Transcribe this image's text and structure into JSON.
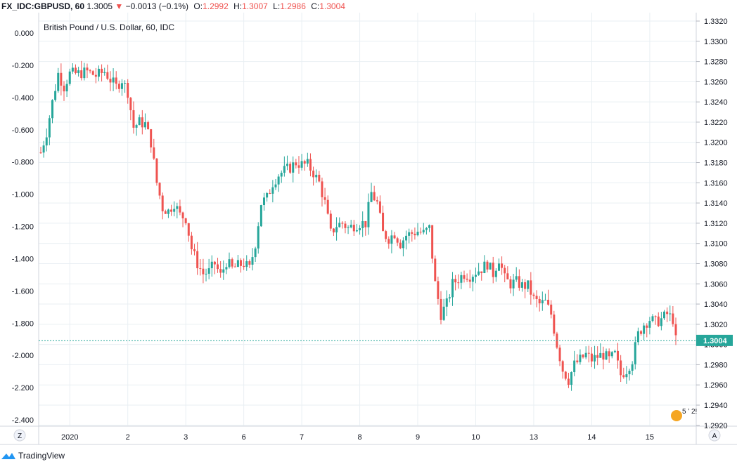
{
  "header": {
    "symbol": "FX_IDC:GBPUSD, 60",
    "last": "1.3005",
    "change_arrow": "▼",
    "change": "−0.0013 (−0.1%)",
    "o_label": "O:",
    "o_value": "1.2992",
    "h_label": "H:",
    "h_value": "1.3007",
    "l_label": "L:",
    "l_value": "1.2986",
    "c_label": "C:",
    "c_value": "1.3004"
  },
  "chart_data": {
    "type": "candlestick",
    "title": "British Pound / U.S. Dollar, 60, IDC",
    "right_axis_ticks": [
      "1.3320",
      "1.3300",
      "1.3280",
      "1.3260",
      "1.3240",
      "1.3220",
      "1.3200",
      "1.3180",
      "1.3160",
      "1.3140",
      "1.3120",
      "1.3100",
      "1.3080",
      "1.3060",
      "1.3040",
      "1.3020",
      "1.3000",
      "1.2980",
      "1.2960",
      "1.2940",
      "1.2920"
    ],
    "right_axis_values": [
      1.332,
      1.33,
      1.328,
      1.326,
      1.324,
      1.322,
      1.32,
      1.318,
      1.316,
      1.314,
      1.312,
      1.31,
      1.308,
      1.306,
      1.304,
      1.302,
      1.3,
      1.298,
      1.296,
      1.294,
      1.292
    ],
    "left_axis_ticks": [
      "0.000",
      "-0.200",
      "-0.400",
      "-0.600",
      "-0.800",
      "-1.000",
      "-1.200",
      "-1.400",
      "-1.600",
      "-1.800",
      "-2.000",
      "-2.200",
      "-2.400"
    ],
    "left_axis_values": [
      0,
      -0.2,
      -0.4,
      -0.6,
      -0.8,
      -1.0,
      -1.2,
      -1.4,
      -1.6,
      -1.8,
      -2.0,
      -2.2,
      -2.4
    ],
    "x_tick_labels": [
      "2020",
      "2",
      "3",
      "6",
      "7",
      "8",
      "9",
      "10",
      "13",
      "14",
      "15"
    ],
    "x_tick_index": [
      10,
      30,
      50,
      70,
      90,
      110,
      130,
      150,
      170,
      190,
      210
    ],
    "current_price": "1.3004",
    "current_price_value": 1.3004,
    "ylim": [
      1.2918,
      1.3324
    ],
    "up_color": "#26a69a",
    "down_color": "#ef5350",
    "bars": 220,
    "anchors": [
      [
        0,
        1.319
      ],
      [
        2,
        1.321
      ],
      [
        4,
        1.324
      ],
      [
        6,
        1.3268
      ],
      [
        8,
        1.3255
      ],
      [
        10,
        1.3268
      ],
      [
        13,
        1.3268
      ],
      [
        16,
        1.327
      ],
      [
        19,
        1.3266
      ],
      [
        22,
        1.327
      ],
      [
        24,
        1.3262
      ],
      [
        26,
        1.3255
      ],
      [
        28,
        1.3262
      ],
      [
        30,
        1.325
      ],
      [
        32,
        1.3215
      ],
      [
        34,
        1.322
      ],
      [
        36,
        1.3218
      ],
      [
        38,
        1.32
      ],
      [
        40,
        1.316
      ],
      [
        42,
        1.3135
      ],
      [
        44,
        1.3132
      ],
      [
        46,
        1.314
      ],
      [
        48,
        1.3128
      ],
      [
        50,
        1.3125
      ],
      [
        52,
        1.3095
      ],
      [
        54,
        1.308
      ],
      [
        56,
        1.307
      ],
      [
        58,
        1.3072
      ],
      [
        60,
        1.308
      ],
      [
        62,
        1.3068
      ],
      [
        64,
        1.3082
      ],
      [
        66,
        1.3075
      ],
      [
        68,
        1.3078
      ],
      [
        70,
        1.308
      ],
      [
        72,
        1.3075
      ],
      [
        74,
        1.31
      ],
      [
        76,
        1.314
      ],
      [
        78,
        1.3145
      ],
      [
        80,
        1.316
      ],
      [
        82,
        1.3168
      ],
      [
        84,
        1.3172
      ],
      [
        86,
        1.3175
      ],
      [
        88,
        1.318
      ],
      [
        90,
        1.3178
      ],
      [
        92,
        1.3178
      ],
      [
        94,
        1.317
      ],
      [
        96,
        1.316
      ],
      [
        98,
        1.314
      ],
      [
        100,
        1.311
      ],
      [
        102,
        1.3118
      ],
      [
        104,
        1.312
      ],
      [
        106,
        1.3115
      ],
      [
        108,
        1.3118
      ],
      [
        110,
        1.312
      ],
      [
        112,
        1.312
      ],
      [
        114,
        1.315
      ],
      [
        116,
        1.314
      ],
      [
        118,
        1.311
      ],
      [
        120,
        1.3105
      ],
      [
        122,
        1.311
      ],
      [
        124,
        1.31
      ],
      [
        126,
        1.3108
      ],
      [
        128,
        1.311
      ],
      [
        130,
        1.3112
      ],
      [
        132,
        1.311
      ],
      [
        134,
        1.3115
      ],
      [
        136,
        1.306
      ],
      [
        138,
        1.303
      ],
      [
        140,
        1.304
      ],
      [
        142,
        1.306
      ],
      [
        144,
        1.3065
      ],
      [
        146,
        1.307
      ],
      [
        148,
        1.3068
      ],
      [
        150,
        1.3072
      ],
      [
        152,
        1.3075
      ],
      [
        154,
        1.308
      ],
      [
        156,
        1.307
      ],
      [
        158,
        1.3085
      ],
      [
        160,
        1.3065
      ],
      [
        162,
        1.306
      ],
      [
        164,
        1.3062
      ],
      [
        166,
        1.3058
      ],
      [
        168,
        1.3058
      ],
      [
        170,
        1.3045
      ],
      [
        172,
        1.304
      ],
      [
        174,
        1.3042
      ],
      [
        176,
        1.303
      ],
      [
        178,
        1.3
      ],
      [
        180,
        1.2975
      ],
      [
        182,
        1.2965
      ],
      [
        184,
        1.298
      ],
      [
        186,
        1.2985
      ],
      [
        188,
        1.299
      ],
      [
        190,
        1.2985
      ],
      [
        192,
        1.2988
      ],
      [
        194,
        1.299
      ],
      [
        196,
        1.2985
      ],
      [
        198,
        1.299
      ],
      [
        200,
        1.297
      ],
      [
        202,
        1.2975
      ],
      [
        204,
        1.2985
      ],
      [
        206,
        1.301
      ],
      [
        208,
        1.302
      ],
      [
        210,
        1.3025
      ],
      [
        212,
        1.3022
      ],
      [
        214,
        1.3025
      ],
      [
        216,
        1.303
      ],
      [
        218,
        1.3025
      ],
      [
        219,
        1.3004
      ]
    ]
  },
  "scale_buttons": {
    "left": "Z",
    "right": "A"
  },
  "event_badge": {
    "text": "5 ’ 2!"
  },
  "footer": {
    "brand": "TradingView"
  }
}
